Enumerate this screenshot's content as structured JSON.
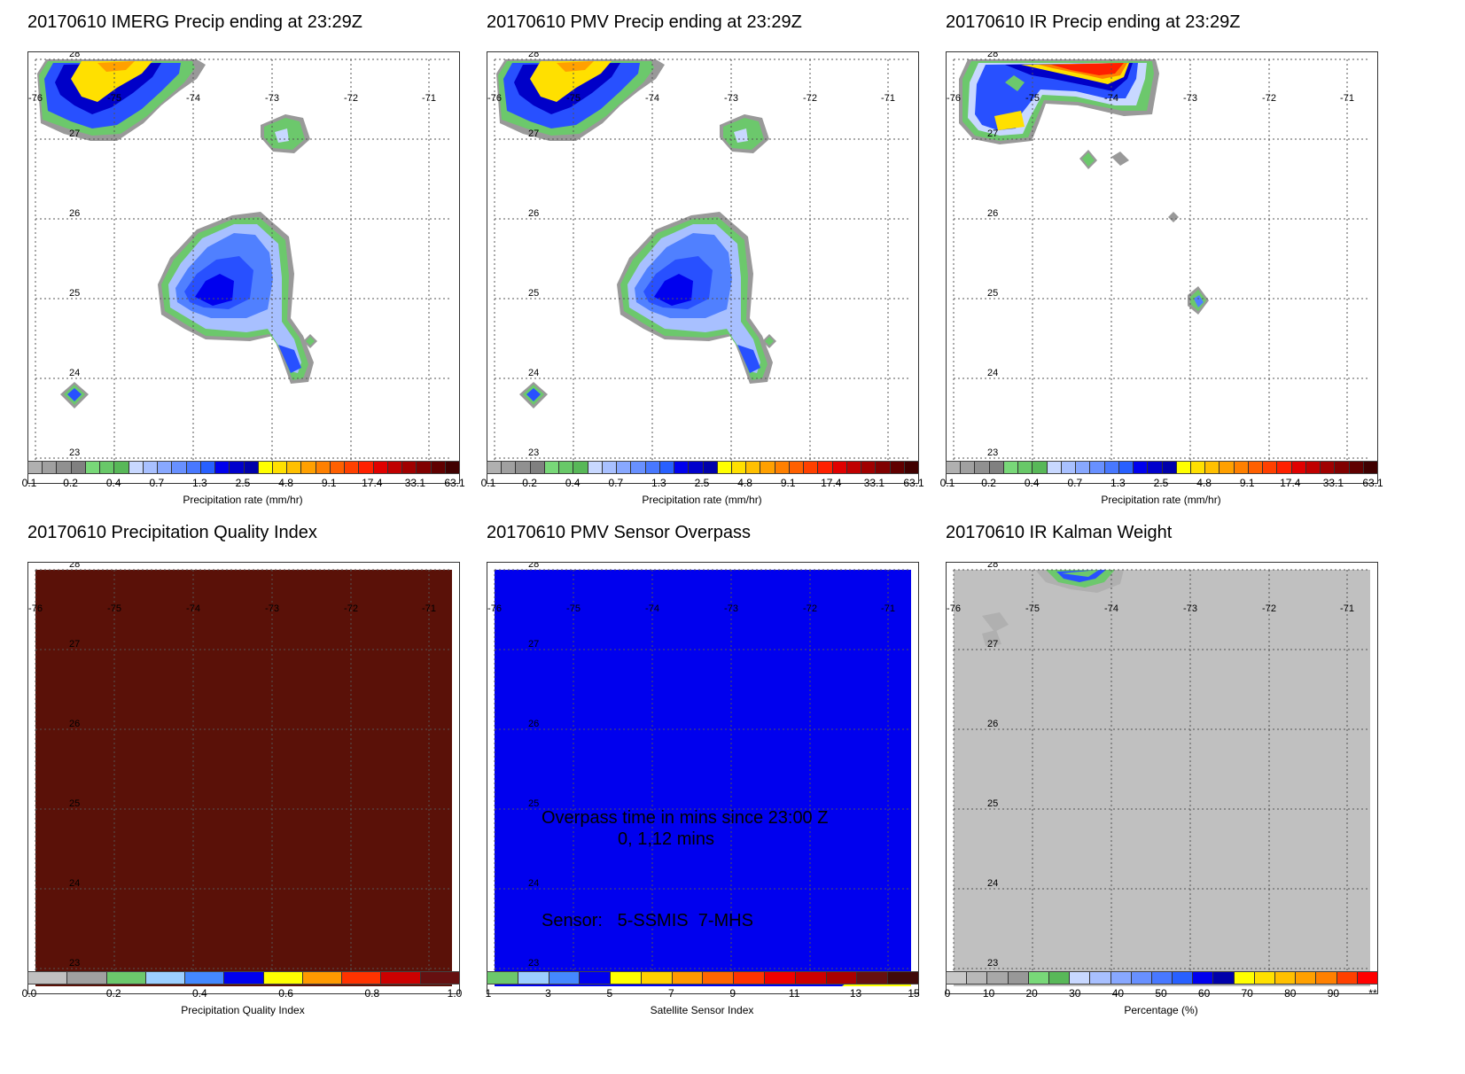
{
  "panels": [
    {
      "title": "20170610 IMERG Precip ending at 23:29Z",
      "kind": "precip",
      "colorbar_label": "Precipitation rate (mm/hr)",
      "ticks": [
        "0.1",
        "0.2",
        "0.4",
        "0.7",
        "1.3",
        "2.5",
        "4.8",
        "9.1",
        "17.4",
        "33.1",
        "63.1"
      ]
    },
    {
      "title": "20170610 PMV Precip ending at 23:29Z",
      "kind": "precip",
      "colorbar_label": "Precipitation rate (mm/hr)",
      "ticks": [
        "0.1",
        "0.2",
        "0.4",
        "0.7",
        "1.3",
        "2.5",
        "4.8",
        "9.1",
        "17.4",
        "33.1",
        "63.1"
      ]
    },
    {
      "title": "20170610 IR Precip ending at 23:29Z",
      "kind": "ir",
      "colorbar_label": "Precipitation rate (mm/hr)",
      "ticks": [
        "0.1",
        "0.2",
        "0.4",
        "0.7",
        "1.3",
        "2.5",
        "4.8",
        "9.1",
        "17.4",
        "33.1",
        "63.1"
      ]
    },
    {
      "title": "20170610 Precipitation Quality Index",
      "kind": "quality",
      "field_color": "#5a1108",
      "colorbar_label": "Precipitation Quality Index",
      "ticks": [
        "0.0",
        "0.2",
        "0.4",
        "0.6",
        "0.8",
        "1.0"
      ]
    },
    {
      "title": "20170610 PMV Sensor Overpass",
      "kind": "sensor",
      "field_color": "#0000ee",
      "colorbar_label": "Satellite Sensor Index",
      "ticks": [
        "1",
        "3",
        "5",
        "7",
        "9",
        "11",
        "13",
        "15"
      ],
      "overpass_line1": "Overpass time in mins since 23:00 Z",
      "overpass_line2": "0, 1,12 mins",
      "sensor_text": "Sensor:   5-SSMIS  7-MHS"
    },
    {
      "title": "20170610 IR Kalman Weight",
      "kind": "kalman",
      "field_color": "#c0c0c0",
      "colorbar_label": "Percentage (%)",
      "ticks": [
        "0",
        "10",
        "20",
        "30",
        "40",
        "50",
        "60",
        "70",
        "80",
        "90",
        "**"
      ]
    }
  ],
  "lon_labels": [
    "-76",
    "-75",
    "-74",
    "-73",
    "-72",
    "-71"
  ],
  "lat_labels": [
    "28",
    "27",
    "26",
    "25",
    "24",
    "23"
  ],
  "colors": {
    "precip_scale": [
      "#b0b0b0",
      "#a0a0a0",
      "#909090",
      "#808080",
      "#78d878",
      "#68c868",
      "#58b858",
      "#c8d8ff",
      "#a8c0ff",
      "#88a8ff",
      "#6890ff",
      "#4878ff",
      "#2860ff",
      "#0000ee",
      "#0000cc",
      "#0000aa",
      "#ffff00",
      "#ffe000",
      "#ffc000",
      "#ffa000",
      "#ff8000",
      "#ff6000",
      "#ff4000",
      "#ff2000",
      "#e00000",
      "#c00000",
      "#a00000",
      "#800000",
      "#600000",
      "#400000"
    ],
    "quality_scale": [
      "#c0c0c0",
      "#a0a0a0",
      "#6cc86c",
      "#9ccfff",
      "#4488ff",
      "#0000ee",
      "#ffff00",
      "#ff9900",
      "#ff3300",
      "#cc0000",
      "#661010"
    ],
    "sensor_scale": [
      "#6cc86c",
      "#9ccfff",
      "#4488ff",
      "#0000ee",
      "#ffff00",
      "#ffd000",
      "#ff9900",
      "#ff6600",
      "#ff3300",
      "#ee0000",
      "#cc0000",
      "#aa0000",
      "#661010",
      "#400a0a"
    ],
    "kalman_scale": [
      "#c8c8c8",
      "#b8b8b8",
      "#a8a8a8",
      "#989898",
      "#78d878",
      "#58b858",
      "#c8d8ff",
      "#a8c0ff",
      "#88a8ff",
      "#6890ff",
      "#4878ff",
      "#2860ff",
      "#0000ee",
      "#0000aa",
      "#ffff00",
      "#ffe000",
      "#ffc000",
      "#ffa000",
      "#ff8000",
      "#ff4000",
      "#ff0000"
    ]
  }
}
